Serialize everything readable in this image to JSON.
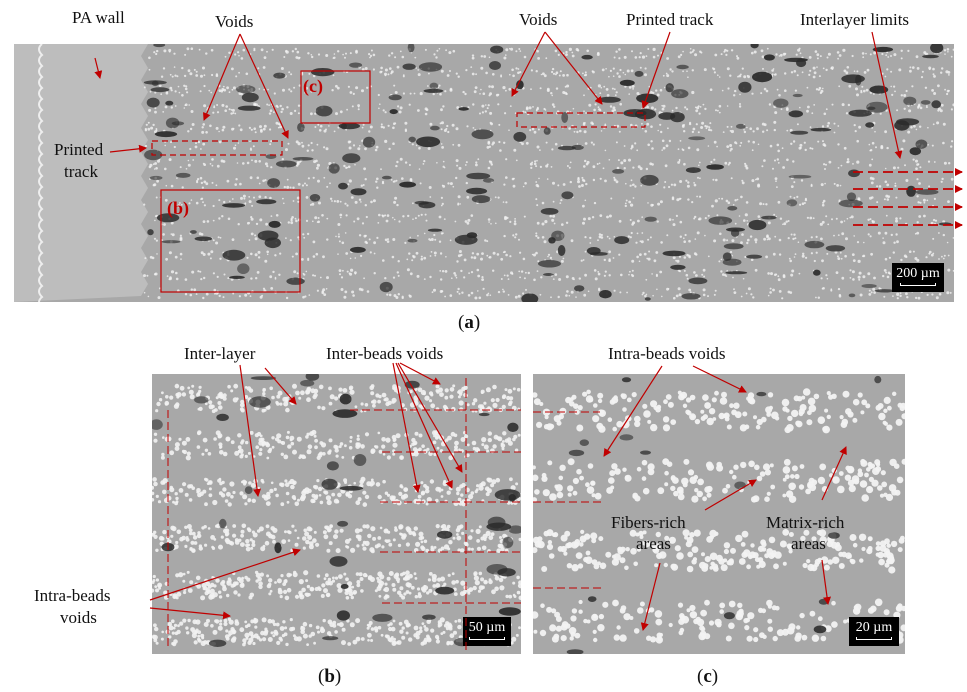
{
  "labels": {
    "pa_wall": "PA wall",
    "voids_1": "Voids",
    "voids_2": "Voids",
    "printed_track_top": "Printed track",
    "interlayer_limits": "Interlayer limits",
    "printed_track_left_1": "Printed",
    "printed_track_left_2": "track",
    "inter_layer": "Inter-layer",
    "inter_beads_voids": "Inter-beads voids",
    "intra_beads_voids_top": "Intra-beads voids",
    "intra_beads_voids_left_1": "Intra-beads",
    "intra_beads_voids_left_2": "voids",
    "fibers_rich_1": "Fibers-rich",
    "fibers_rich_2": "areas",
    "matrix_rich_1": "Matrix-rich",
    "matrix_rich_2": "areas"
  },
  "boxes": {
    "b": "(b)",
    "c": "(c)"
  },
  "captions": {
    "a": "a",
    "b": "b",
    "c": "c"
  },
  "scale_bars": {
    "a": "200 µm",
    "b": "50 µm",
    "c": "20 µm"
  },
  "colors": {
    "annotation": "#c00000",
    "matrix": "#a8a8a8",
    "pa_wall": "#bdbdbd",
    "void": "#2b2b2b",
    "fiber": "#f2f2f2"
  }
}
